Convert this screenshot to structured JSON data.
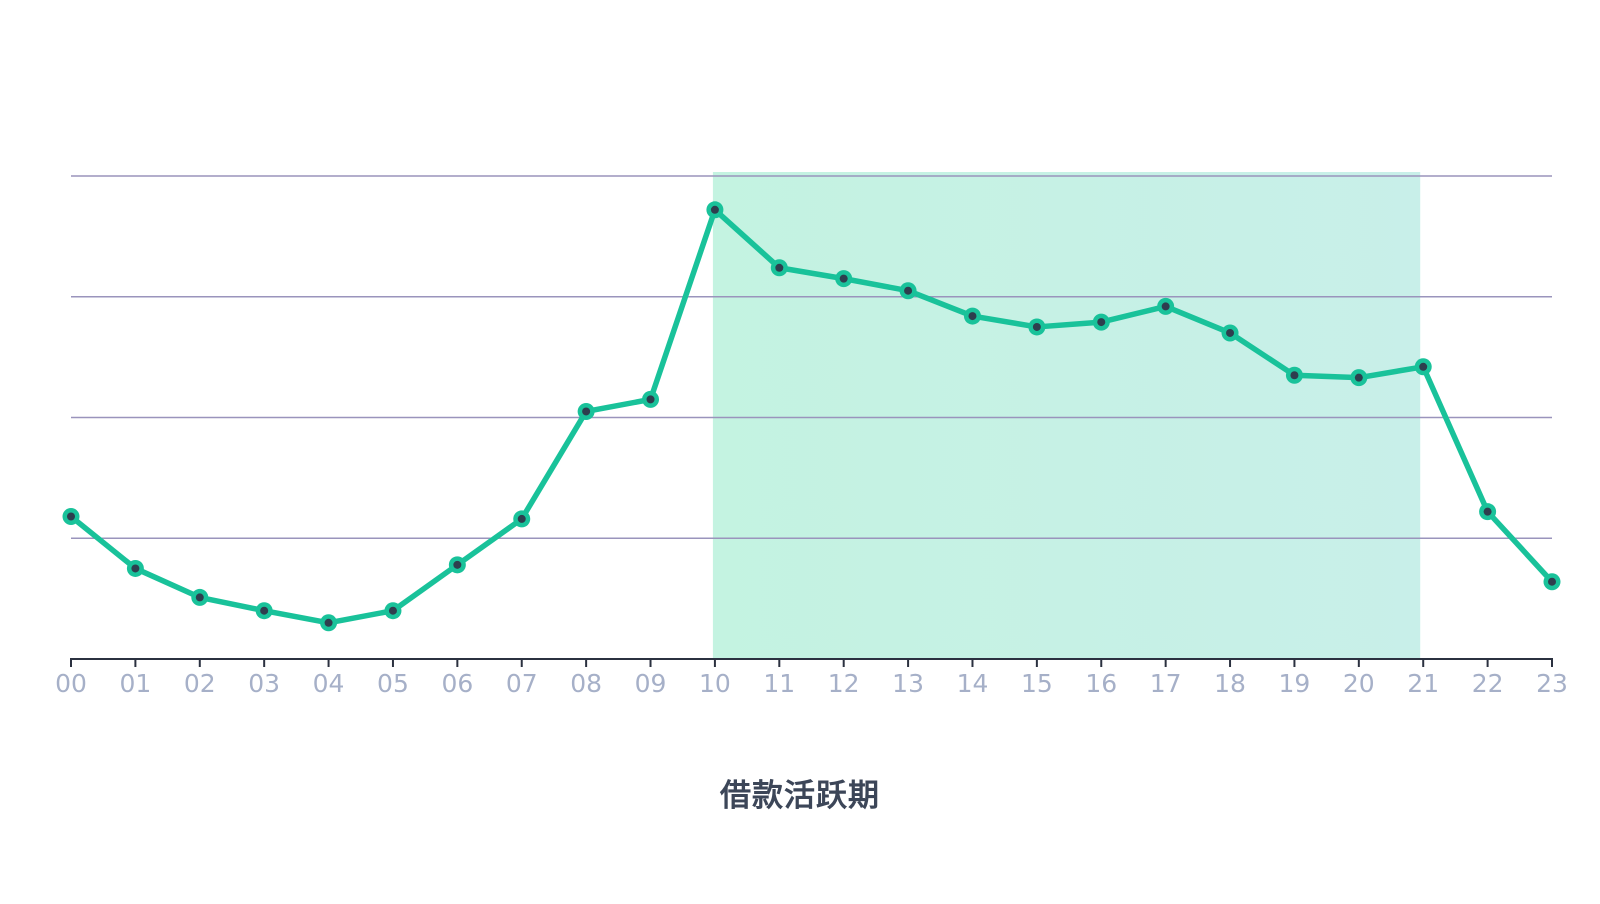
{
  "chart_data": {
    "type": "line",
    "title": "",
    "xlabel": "",
    "ylabel": "",
    "caption": "借款活跃期",
    "categories": [
      "00",
      "01",
      "02",
      "03",
      "04",
      "05",
      "06",
      "07",
      "08",
      "09",
      "10",
      "11",
      "12",
      "13",
      "14",
      "15",
      "16",
      "17",
      "18",
      "19",
      "20",
      "21",
      "22",
      "23"
    ],
    "series": [
      {
        "values": [
          1.18,
          0.75,
          0.51,
          0.4,
          0.3,
          0.4,
          0.78,
          1.16,
          2.05,
          2.15,
          3.72,
          3.24,
          3.15,
          3.05,
          2.84,
          2.75,
          2.79,
          2.92,
          2.7,
          2.35,
          2.33,
          2.42,
          1.22,
          0.64
        ]
      }
    ],
    "ylim": [
      0,
      4
    ],
    "y_ticks": [
      1,
      2,
      3,
      4
    ],
    "y_tick_labels_visible": false,
    "grid": "horizontal",
    "highlight_band": {
      "from": "10",
      "to": "21"
    },
    "colors": {
      "line": "#19c29a",
      "marker_fill": "#19c29a",
      "marker_center": "#2e3e4e",
      "band_left": "#c4f3e1",
      "band_right": "#c8efe9",
      "grid": "#9a94bc",
      "axis": "#2b3140",
      "tick_label": "#a6b0c8",
      "caption": "#3c4658"
    }
  }
}
